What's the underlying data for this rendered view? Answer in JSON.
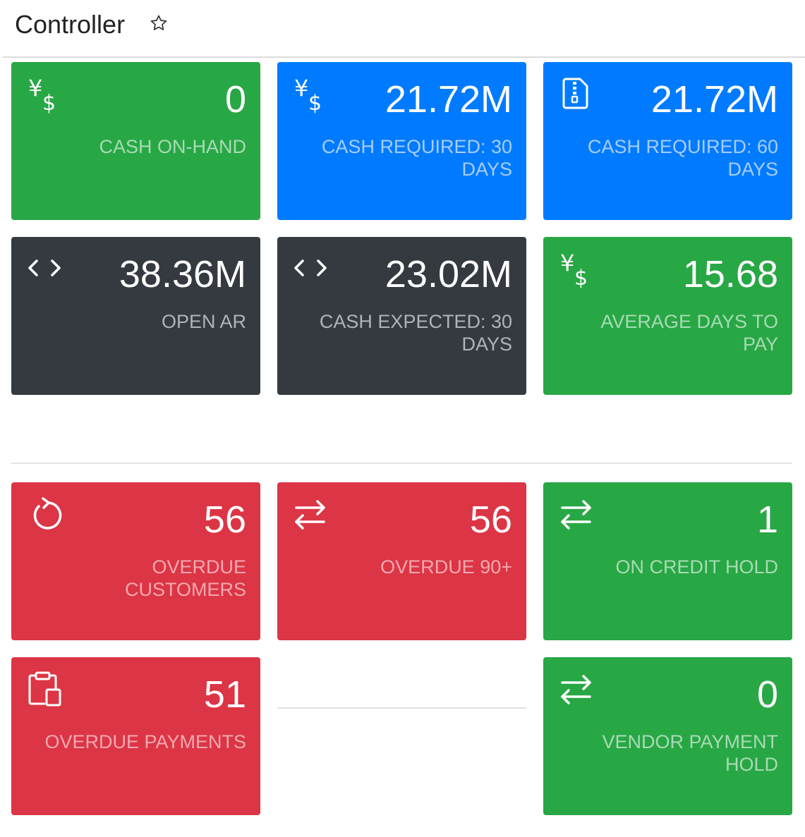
{
  "header": {
    "title": "Controller",
    "star_icon": "star-outline-icon"
  },
  "colors": {
    "green": "#28a745",
    "blue": "#007bff",
    "dark": "#343a40",
    "red": "#dc3545"
  },
  "tiles": [
    {
      "value": "0",
      "label": "CASH ON-HAND",
      "icon": "yen-dollar-icon",
      "color": "green"
    },
    {
      "value": "21.72M",
      "label": "CASH REQUIRED: 30 DAYS",
      "icon": "yen-dollar-icon",
      "color": "blue"
    },
    {
      "value": "21.72M",
      "label": "CASH REQUIRED: 60 DAYS",
      "icon": "zip-file-icon",
      "color": "blue"
    },
    {
      "value": "38.36M",
      "label": "OPEN AR",
      "icon": "code-icon",
      "color": "dark"
    },
    {
      "value": "23.02M",
      "label": "CASH EXPECTED: 30 DAYS",
      "icon": "code-icon",
      "color": "dark"
    },
    {
      "value": "15.68",
      "label": "AVERAGE DAYS TO PAY",
      "icon": "yen-dollar-icon",
      "color": "green"
    },
    {
      "value": "56",
      "label": "OVERDUE CUSTOMERS",
      "icon": "refresh-icon",
      "color": "red"
    },
    {
      "value": "56",
      "label": "OVERDUE 90+",
      "icon": "transfer-arrows-icon",
      "color": "red"
    },
    {
      "value": "1",
      "label": "ON CREDIT HOLD",
      "icon": "transfer-arrows-icon",
      "color": "green"
    },
    {
      "value": "51",
      "label": "OVERDUE PAYMENTS",
      "icon": "clipboard-icon",
      "color": "red"
    },
    {
      "value": "0",
      "label": "VENDOR PAYMENT HOLD",
      "icon": "transfer-arrows-icon",
      "color": "green"
    }
  ]
}
